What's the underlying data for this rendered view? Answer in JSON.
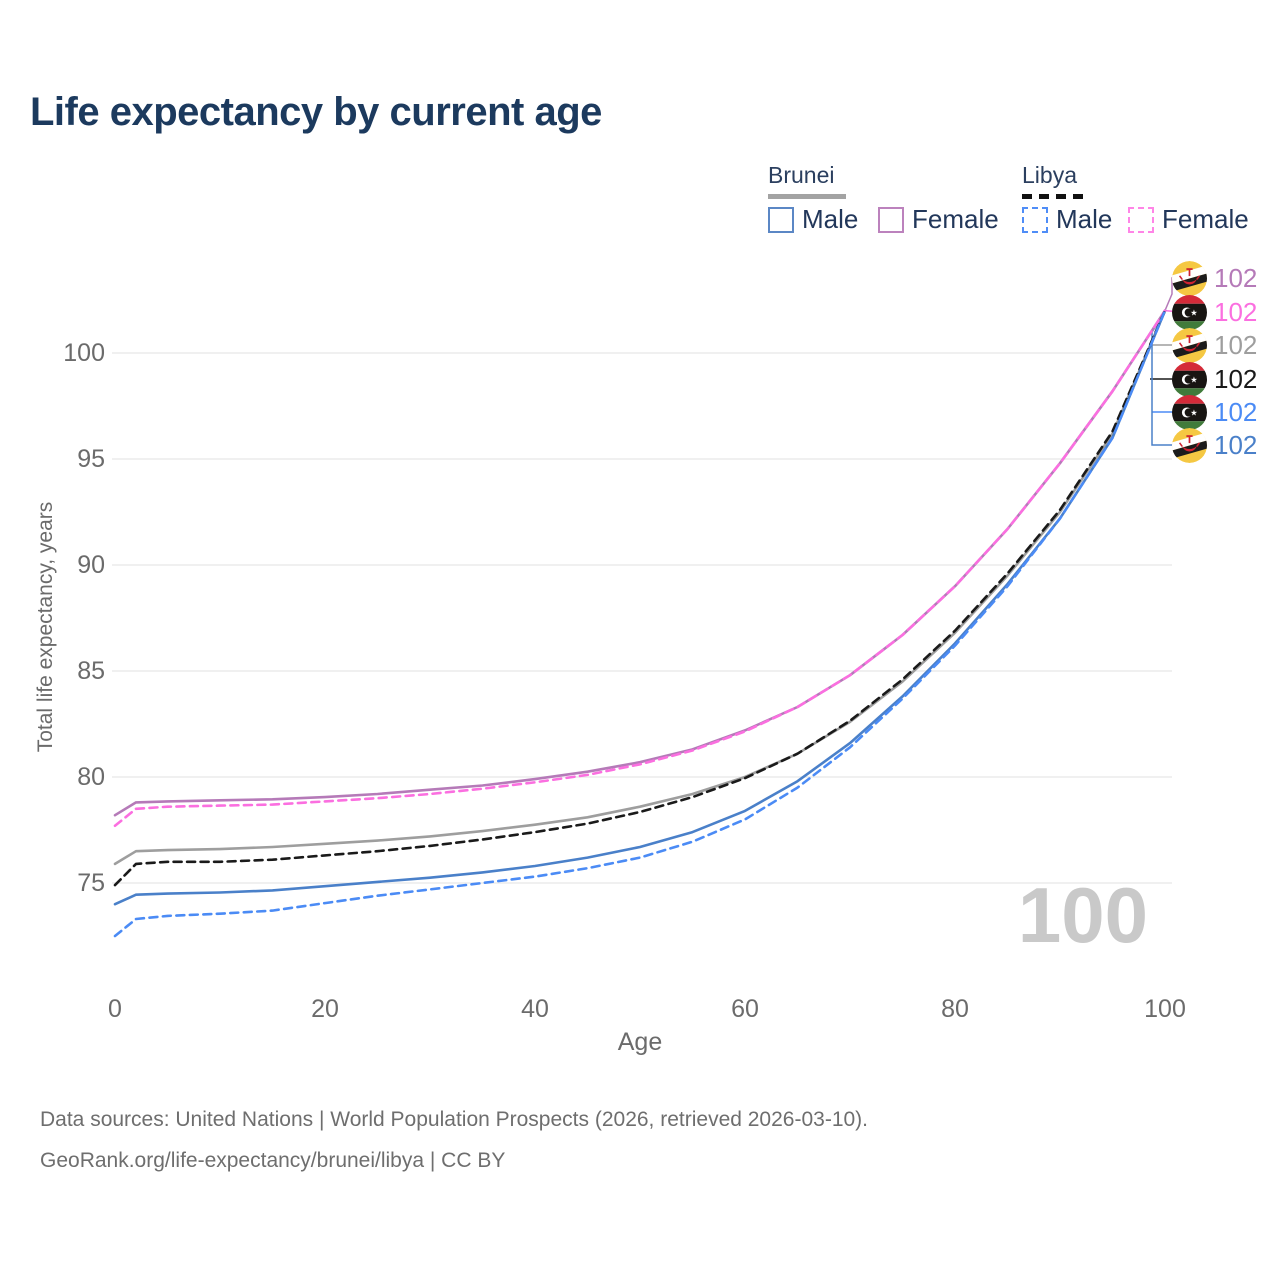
{
  "title": "Life expectancy by current age",
  "legend": {
    "groups": [
      {
        "label": "Brunei",
        "line_style": "solid",
        "items": [
          {
            "label": "Male",
            "color": "#5b87c5",
            "dashed": false
          },
          {
            "label": "Female",
            "color": "#bc82bd",
            "dashed": false
          }
        ]
      },
      {
        "label": "Libya",
        "line_style": "dashed",
        "items": [
          {
            "label": "Male",
            "color": "#4f8df7",
            "dashed": true
          },
          {
            "label": "Female",
            "color": "#ff85e7",
            "dashed": true
          }
        ]
      }
    ]
  },
  "chart_data": {
    "type": "line",
    "title": "Life expectancy by current age",
    "xlabel": "Age",
    "ylabel": "Total life expectancy, years",
    "xlim": [
      0,
      100
    ],
    "ylim": [
      72,
      103
    ],
    "xticks": [
      0,
      20,
      40,
      60,
      80,
      100
    ],
    "yticks": [
      75,
      80,
      85,
      90,
      95,
      100
    ],
    "grid": "horizontal",
    "legend_position": "top-right",
    "x": [
      0,
      2,
      5,
      10,
      15,
      20,
      25,
      30,
      35,
      40,
      45,
      50,
      55,
      60,
      65,
      70,
      75,
      80,
      85,
      90,
      95,
      100
    ],
    "series": [
      {
        "name": "Brunei Female",
        "country": "Brunei",
        "sex": "Female",
        "color": "#b57ab8",
        "dashed": false,
        "values": [
          78.2,
          78.8,
          78.85,
          78.9,
          78.95,
          79.05,
          79.2,
          79.4,
          79.6,
          79.9,
          80.25,
          80.7,
          81.3,
          82.2,
          83.3,
          84.8,
          86.7,
          89.0,
          91.7,
          94.8,
          98.2,
          102
        ]
      },
      {
        "name": "Brunei",
        "country": "Brunei",
        "sex": "Both",
        "color": "#9e9e9e",
        "dashed": false,
        "values": [
          75.9,
          76.5,
          76.55,
          76.6,
          76.7,
          76.85,
          77.0,
          77.2,
          77.45,
          77.75,
          78.1,
          78.6,
          79.2,
          80.0,
          81.1,
          82.6,
          84.5,
          86.8,
          89.5,
          92.5,
          96.2,
          102
        ]
      },
      {
        "name": "Brunei Male",
        "country": "Brunei",
        "sex": "Male",
        "color": "#4a80c9",
        "dashed": false,
        "values": [
          74.0,
          74.45,
          74.5,
          74.55,
          74.65,
          74.85,
          75.05,
          75.25,
          75.5,
          75.8,
          76.2,
          76.7,
          77.4,
          78.4,
          79.8,
          81.6,
          83.8,
          86.3,
          89.1,
          92.2,
          96.0,
          102
        ]
      },
      {
        "name": "Libya Female",
        "country": "Libya",
        "sex": "Female",
        "color": "#fb6fe0",
        "dashed": true,
        "values": [
          77.7,
          78.5,
          78.6,
          78.65,
          78.7,
          78.85,
          79.0,
          79.2,
          79.45,
          79.75,
          80.1,
          80.6,
          81.25,
          82.15,
          83.3,
          84.8,
          86.7,
          89.0,
          91.7,
          94.8,
          98.2,
          102
        ]
      },
      {
        "name": "Libya",
        "country": "Libya",
        "sex": "Both",
        "color": "#1a1a1a",
        "dashed": true,
        "values": [
          74.9,
          75.9,
          76.0,
          76.0,
          76.1,
          76.3,
          76.5,
          76.75,
          77.05,
          77.4,
          77.8,
          78.35,
          79.05,
          79.95,
          81.1,
          82.65,
          84.6,
          86.9,
          89.6,
          92.6,
          96.3,
          102
        ]
      },
      {
        "name": "Libya Male",
        "country": "Libya",
        "sex": "Male",
        "color": "#4b8bf5",
        "dashed": true,
        "values": [
          72.5,
          73.3,
          73.45,
          73.55,
          73.7,
          74.05,
          74.4,
          74.7,
          75.0,
          75.3,
          75.7,
          76.2,
          76.95,
          78.0,
          79.5,
          81.4,
          83.7,
          86.2,
          89.0,
          92.2,
          96.0,
          102
        ]
      }
    ]
  },
  "end_labels": [
    {
      "flag": "brunei-flag",
      "value": "102",
      "color": "#b57ab8"
    },
    {
      "flag": "libya-flag",
      "value": "102",
      "color": "#fb6fe0"
    },
    {
      "flag": "brunei-flag",
      "value": "102",
      "color": "#9e9e9e"
    },
    {
      "flag": "libya-flag",
      "value": "102",
      "color": "#1a1a1a"
    },
    {
      "flag": "libya-flag",
      "value": "102",
      "color": "#4b8bf5"
    },
    {
      "flag": "brunei-flag",
      "value": "102",
      "color": "#4a80c9"
    }
  ],
  "watermark": "100",
  "axis": {
    "xlabel": "Age",
    "ylabel": "Total life expectancy, years"
  },
  "footer": {
    "line1": "Data sources: United Nations | World Population Prospects (2026, retrieved 2026-03-10).",
    "line2": "GeoRank.org/life-expectancy/brunei/libya | CC BY"
  }
}
